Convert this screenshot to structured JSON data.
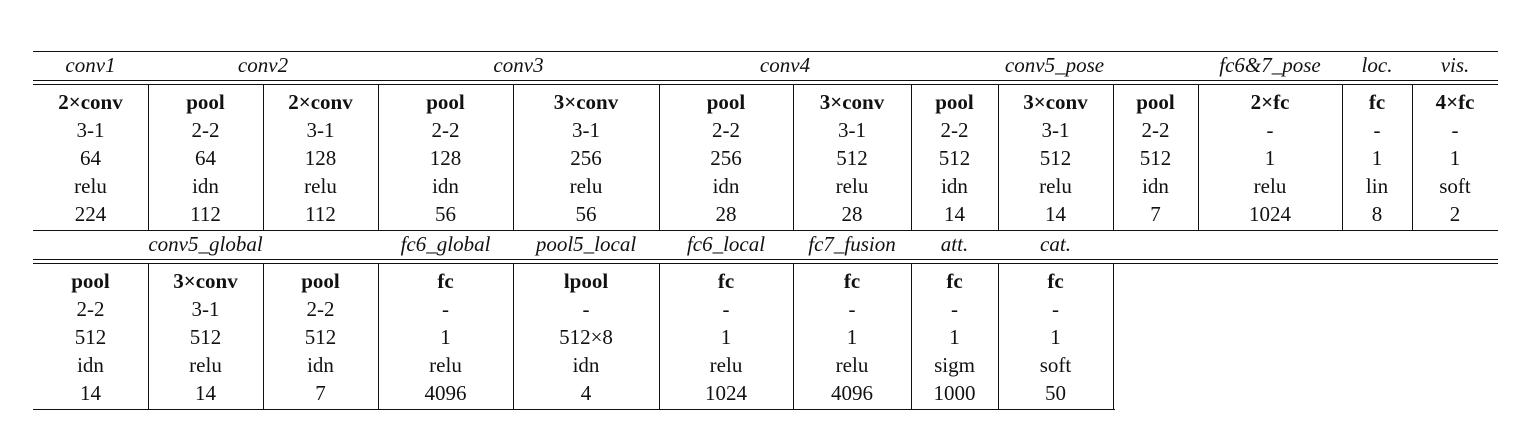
{
  "top": {
    "groups": [
      "conv1",
      "conv2",
      "conv3",
      "conv4",
      "conv5_pose",
      "fc6&7_pose",
      "loc.",
      "vis."
    ],
    "columns": [
      [
        "2×conv",
        "3-1",
        "64",
        "relu",
        "224"
      ],
      [
        "pool",
        "2-2",
        "64",
        "idn",
        "112"
      ],
      [
        "2×conv",
        "3-1",
        "128",
        "relu",
        "112"
      ],
      [
        "pool",
        "2-2",
        "128",
        "idn",
        "56"
      ],
      [
        "3×conv",
        "3-1",
        "256",
        "relu",
        "56"
      ],
      [
        "pool",
        "2-2",
        "256",
        "idn",
        "28"
      ],
      [
        "3×conv",
        "3-1",
        "512",
        "relu",
        "28"
      ],
      [
        "pool",
        "2-2",
        "512",
        "idn",
        "14"
      ],
      [
        "3×conv",
        "3-1",
        "512",
        "relu",
        "14"
      ],
      [
        "pool",
        "2-2",
        "512",
        "idn",
        "7"
      ],
      [
        "2×fc",
        "-",
        "1",
        "relu",
        "1024"
      ],
      [
        "fc",
        "-",
        "1",
        "lin",
        "8"
      ],
      [
        "4×fc",
        "-",
        "1",
        "soft",
        "2"
      ]
    ]
  },
  "bottom": {
    "groups": [
      "conv5_global",
      "fc6_global",
      "pool5_local",
      "fc6_local",
      "fc7_fusion",
      "att.",
      "cat."
    ],
    "columns": [
      [
        "pool",
        "2-2",
        "512",
        "idn",
        "14"
      ],
      [
        "3×conv",
        "3-1",
        "512",
        "relu",
        "14"
      ],
      [
        "pool",
        "2-2",
        "512",
        "idn",
        "7"
      ],
      [
        "fc",
        "-",
        "1",
        "relu",
        "4096"
      ],
      [
        "lpool",
        "-",
        "512×8",
        "idn",
        "4"
      ],
      [
        "fc",
        "-",
        "1",
        "relu",
        "1024"
      ],
      [
        "fc",
        "-",
        "1",
        "relu",
        "4096"
      ],
      [
        "fc",
        "-",
        "1",
        "sigm",
        "1000"
      ],
      [
        "fc",
        "-",
        "1",
        "soft",
        "50"
      ]
    ]
  }
}
